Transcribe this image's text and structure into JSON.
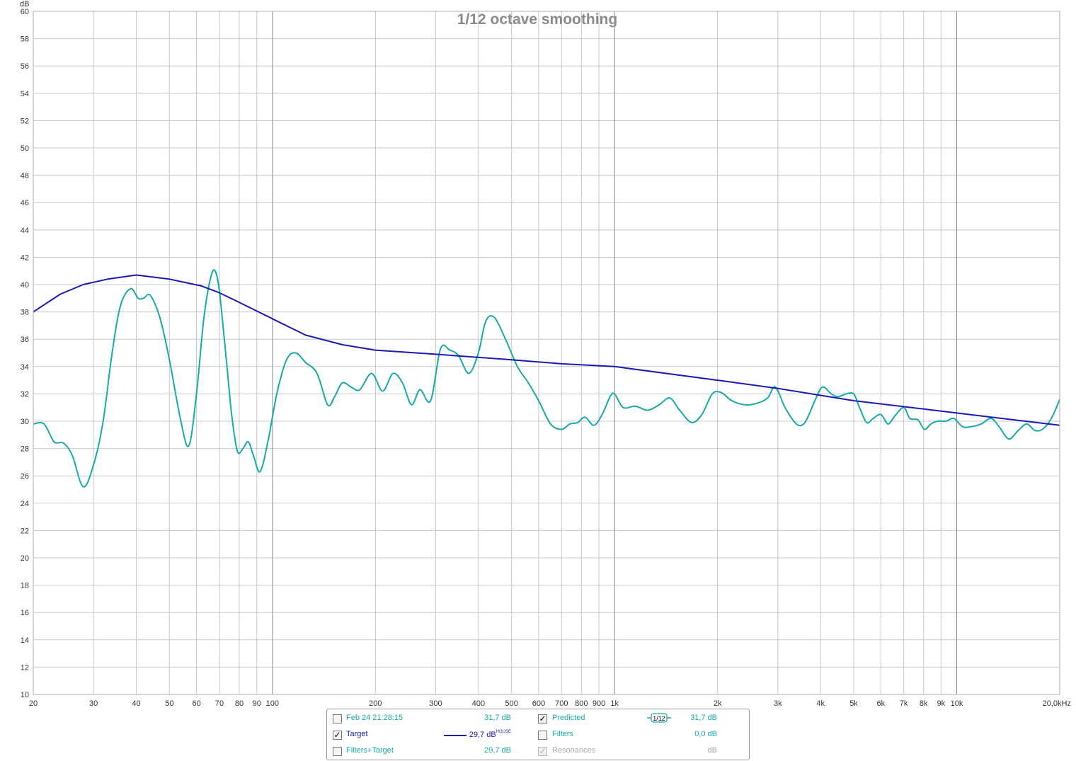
{
  "chart_data": {
    "type": "line",
    "title": "1/12 octave smoothing",
    "ylabel": "dB",
    "xscale": "log",
    "xlim": [
      20,
      20000
    ],
    "ylim": [
      10,
      60
    ],
    "grid": true,
    "y_ticks": [
      "10",
      "12",
      "14",
      "16",
      "18",
      "20",
      "22",
      "24",
      "26",
      "28",
      "30",
      "32",
      "34",
      "36",
      "38",
      "40",
      "42",
      "44",
      "46",
      "48",
      "50",
      "52",
      "54",
      "56",
      "58",
      "60"
    ],
    "x_ticks": [
      {
        "value": 20,
        "label": "20"
      },
      {
        "value": 30,
        "label": "30"
      },
      {
        "value": 40,
        "label": "40"
      },
      {
        "value": 50,
        "label": "50"
      },
      {
        "value": 60,
        "label": "60"
      },
      {
        "value": 70,
        "label": "70"
      },
      {
        "value": 80,
        "label": "80"
      },
      {
        "value": 90,
        "label": "90"
      },
      {
        "value": 100,
        "label": "100"
      },
      {
        "value": 200,
        "label": "200"
      },
      {
        "value": 300,
        "label": "300"
      },
      {
        "value": 400,
        "label": "400"
      },
      {
        "value": 500,
        "label": "500"
      },
      {
        "value": 600,
        "label": "600"
      },
      {
        "value": 700,
        "label": "700"
      },
      {
        "value": 800,
        "label": "800"
      },
      {
        "value": 900,
        "label": "900"
      },
      {
        "value": 1000,
        "label": "1k"
      },
      {
        "value": 2000,
        "label": "2k"
      },
      {
        "value": 3000,
        "label": "3k"
      },
      {
        "value": 4000,
        "label": "4k"
      },
      {
        "value": 5000,
        "label": "5k"
      },
      {
        "value": 6000,
        "label": "6k"
      },
      {
        "value": 7000,
        "label": "7k"
      },
      {
        "value": 8000,
        "label": "8k"
      },
      {
        "value": 9000,
        "label": "9k"
      },
      {
        "value": 10000,
        "label": "10k"
      },
      {
        "value": 20000,
        "label": "20,0kHz"
      }
    ],
    "series": [
      {
        "name": "Target",
        "color": "#1a1ab4",
        "points": [
          [
            20,
            38.0
          ],
          [
            24,
            39.3
          ],
          [
            28,
            40.0
          ],
          [
            33,
            40.4
          ],
          [
            40,
            40.7
          ],
          [
            50,
            40.4
          ],
          [
            62,
            39.9
          ],
          [
            70,
            39.4
          ],
          [
            80,
            38.7
          ],
          [
            100,
            37.5
          ],
          [
            125,
            36.3
          ],
          [
            160,
            35.6
          ],
          [
            200,
            35.2
          ],
          [
            300,
            34.9
          ],
          [
            500,
            34.5
          ],
          [
            700,
            34.2
          ],
          [
            1000,
            34.0
          ],
          [
            2000,
            33.0
          ],
          [
            3000,
            32.4
          ],
          [
            5000,
            31.5
          ],
          [
            10000,
            30.6
          ],
          [
            20000,
            29.7
          ]
        ]
      },
      {
        "name": "Predicted",
        "color": "#17aaa6",
        "points": [
          [
            20,
            29.8
          ],
          [
            21.5,
            29.8
          ],
          [
            23,
            28.5
          ],
          [
            24.5,
            28.4
          ],
          [
            26,
            27.5
          ],
          [
            28,
            25.2
          ],
          [
            30,
            26.8
          ],
          [
            32,
            30.0
          ],
          [
            34,
            35.0
          ],
          [
            36,
            38.5
          ],
          [
            38.5,
            39.7
          ],
          [
            40.5,
            39.0
          ],
          [
            42,
            39.0
          ],
          [
            44,
            39.2
          ],
          [
            47,
            37.5
          ],
          [
            50,
            34.5
          ],
          [
            54,
            30.0
          ],
          [
            57,
            28.2
          ],
          [
            60,
            32.0
          ],
          [
            63,
            37.5
          ],
          [
            66,
            40.5
          ],
          [
            68,
            41.0
          ],
          [
            70,
            39.5
          ],
          [
            73,
            35.0
          ],
          [
            76,
            30.5
          ],
          [
            79,
            27.8
          ],
          [
            82,
            28.0
          ],
          [
            85,
            28.5
          ],
          [
            88,
            27.5
          ],
          [
            92,
            26.3
          ],
          [
            97,
            28.5
          ],
          [
            103,
            32.0
          ],
          [
            110,
            34.5
          ],
          [
            117,
            35.0
          ],
          [
            125,
            34.3
          ],
          [
            135,
            33.5
          ],
          [
            145,
            31.2
          ],
          [
            152,
            31.8
          ],
          [
            160,
            32.8
          ],
          [
            170,
            32.5
          ],
          [
            180,
            32.3
          ],
          [
            195,
            33.5
          ],
          [
            210,
            32.2
          ],
          [
            225,
            33.5
          ],
          [
            240,
            32.8
          ],
          [
            255,
            31.2
          ],
          [
            270,
            32.3
          ],
          [
            290,
            31.5
          ],
          [
            310,
            35.3
          ],
          [
            330,
            35.2
          ],
          [
            350,
            34.8
          ],
          [
            375,
            33.5
          ],
          [
            400,
            35.0
          ],
          [
            420,
            37.3
          ],
          [
            445,
            37.6
          ],
          [
            480,
            36.0
          ],
          [
            520,
            34.0
          ],
          [
            560,
            32.8
          ],
          [
            600,
            31.5
          ],
          [
            650,
            29.8
          ],
          [
            700,
            29.4
          ],
          [
            740,
            29.8
          ],
          [
            780,
            29.9
          ],
          [
            820,
            30.3
          ],
          [
            870,
            29.7
          ],
          [
            920,
            30.5
          ],
          [
            970,
            31.8
          ],
          [
            1000,
            32.0
          ],
          [
            1060,
            31.0
          ],
          [
            1150,
            31.1
          ],
          [
            1250,
            30.8
          ],
          [
            1350,
            31.2
          ],
          [
            1450,
            31.7
          ],
          [
            1550,
            30.8
          ],
          [
            1680,
            29.9
          ],
          [
            1800,
            30.5
          ],
          [
            1930,
            32.0
          ],
          [
            2050,
            32.1
          ],
          [
            2200,
            31.5
          ],
          [
            2400,
            31.2
          ],
          [
            2600,
            31.3
          ],
          [
            2800,
            31.7
          ],
          [
            2950,
            32.5
          ],
          [
            3150,
            31.0
          ],
          [
            3400,
            29.8
          ],
          [
            3600,
            29.9
          ],
          [
            3850,
            31.5
          ],
          [
            4050,
            32.5
          ],
          [
            4300,
            32.0
          ],
          [
            4500,
            31.8
          ],
          [
            4750,
            32.0
          ],
          [
            5000,
            32.0
          ],
          [
            5200,
            31.0
          ],
          [
            5450,
            29.9
          ],
          [
            5700,
            30.2
          ],
          [
            6000,
            30.5
          ],
          [
            6300,
            29.8
          ],
          [
            6600,
            30.4
          ],
          [
            7000,
            31.0
          ],
          [
            7300,
            30.2
          ],
          [
            7700,
            30.1
          ],
          [
            8050,
            29.4
          ],
          [
            8400,
            29.8
          ],
          [
            8800,
            30.0
          ],
          [
            9300,
            30.0
          ],
          [
            9800,
            30.2
          ],
          [
            10400,
            29.6
          ],
          [
            11000,
            29.6
          ],
          [
            11800,
            29.8
          ],
          [
            12600,
            30.2
          ],
          [
            13300,
            29.6
          ],
          [
            14200,
            28.7
          ],
          [
            15100,
            29.3
          ],
          [
            16000,
            29.8
          ],
          [
            17000,
            29.3
          ],
          [
            18000,
            29.5
          ],
          [
            19000,
            30.3
          ],
          [
            20000,
            31.6
          ]
        ]
      }
    ]
  },
  "legend": {
    "rows": [
      {
        "label": "Feb 24 21:28:15",
        "checked": false,
        "value": "31,7 dB",
        "color": "#17aaa6"
      },
      {
        "label": "Target",
        "checked": true,
        "value": "29,7 dB",
        "value_sup": "HOUSE",
        "color": "#1a1ab4"
      },
      {
        "label": "Filters+Target",
        "checked": false,
        "value": "29,7 dB",
        "color": "#17aaa6"
      }
    ],
    "right_rows": [
      {
        "label": "Predicted",
        "checked": true,
        "value": "31,7 dB",
        "color": "#17aaa6"
      },
      {
        "label": "Filters",
        "checked": false,
        "value": "0,0 dB",
        "color": "#17aaa6"
      },
      {
        "label": "Resonances",
        "checked": true,
        "disabled": true,
        "value": "dB",
        "color": "#a8a8a8"
      }
    ],
    "smoothing_badge": "1/12",
    "check_mark": "✓"
  }
}
